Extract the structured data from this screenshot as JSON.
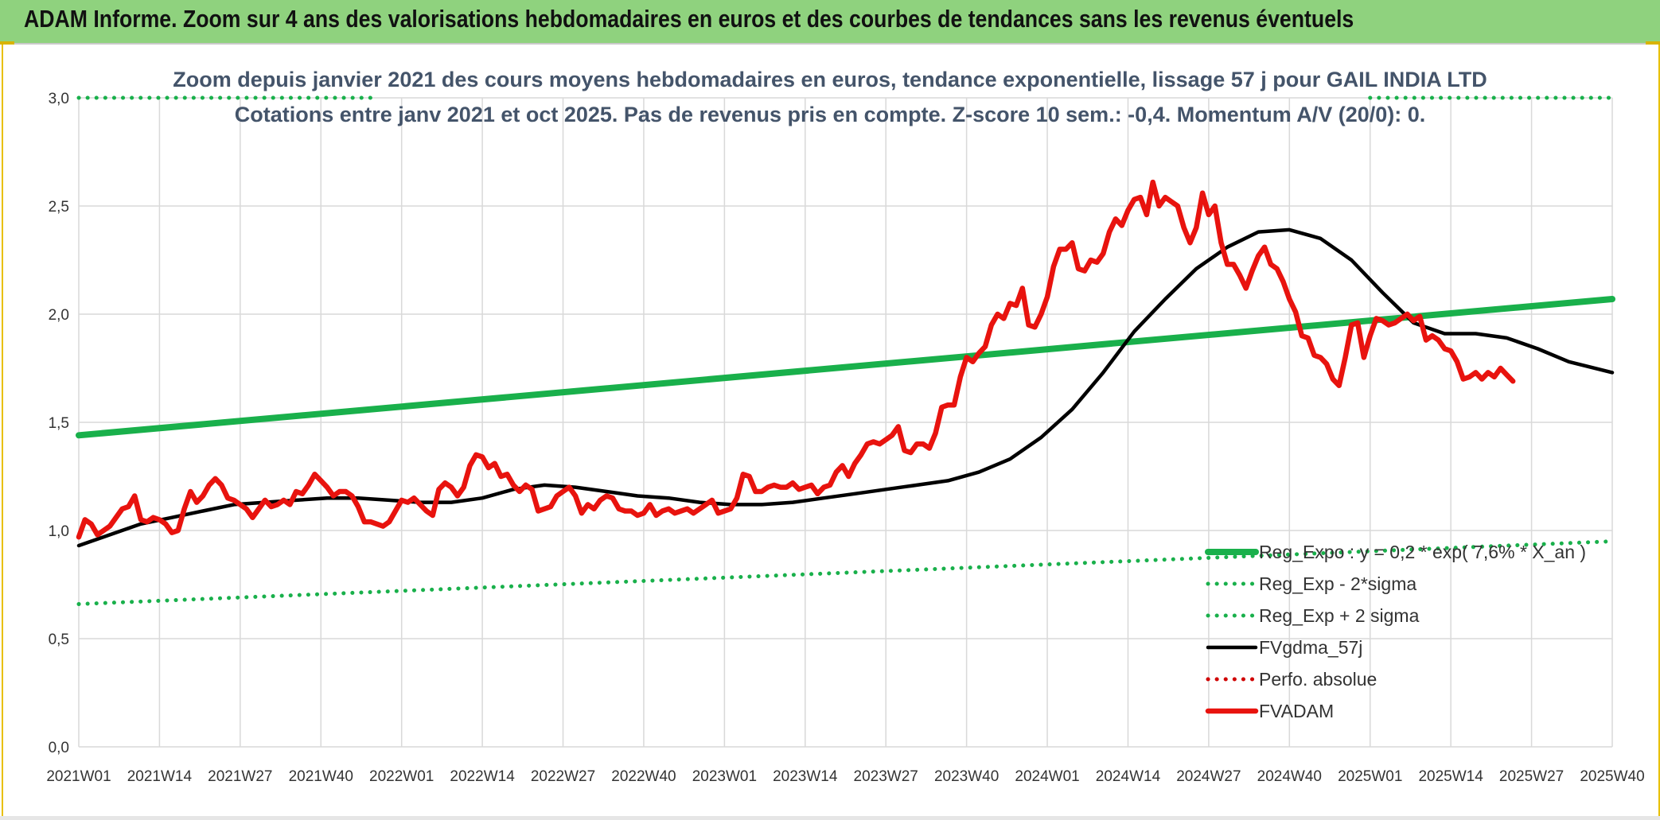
{
  "header": {
    "title": "ADAM Informe. Zoom sur 4 ans des valorisations hebdomadaires en euros et des courbes de tendances sans les revenus éventuels"
  },
  "colors": {
    "header_bg": "#8fd27e",
    "reg_expo": "#19b04b",
    "sigma": "#19b04b",
    "fvgdma": "#000000",
    "perfo": "#d00000",
    "fvadam": "#e8130e",
    "grid": "#d9d9d9"
  },
  "chart_data": {
    "type": "line",
    "title": "Zoom depuis janvier 2021 des cours moyens hebdomadaires en euros, tendance exponentielle, lissage 57 j pour GAIL INDIA LTD",
    "subtitle": "Cotations entre janv 2021 et oct 2025. Pas de revenus pris en compte. Z-score 10 sem.: -0,4. Momentum A/V (20/0): 0.",
    "xlabel": "",
    "ylabel": "",
    "ylim": [
      0,
      3
    ],
    "yticks": [
      "0,0",
      "0,5",
      "1,0",
      "1,5",
      "2,0",
      "2,5",
      "3,0"
    ],
    "grid": true,
    "legend_position": "bottom-right",
    "x_tick_labels": [
      "2021W01",
      "2021W14",
      "2021W27",
      "2021W40",
      "2022W01",
      "2022W14",
      "2022W27",
      "2022W40",
      "2023W01",
      "2023W14",
      "2023W27",
      "2023W40",
      "2024W01",
      "2024W14",
      "2024W27",
      "2024W40",
      "2025W01",
      "2025W14",
      "2025W27",
      "2025W40"
    ],
    "x_range_weeks": [
      0,
      247
    ],
    "series": [
      {
        "name": "Reg_Expo : y = 0,2 * exp( 7,6% * X_an )",
        "style": "solid-thick",
        "color": "#19b04b",
        "points": [
          [
            0,
            1.44
          ],
          [
            247,
            2.07
          ]
        ]
      },
      {
        "name": "Reg_Exp - 2*sigma",
        "style": "dotted",
        "color": "#19b04b",
        "points": [
          [
            0,
            0.66
          ],
          [
            247,
            0.95
          ]
        ]
      },
      {
        "name": "Reg_Exp + 2 sigma",
        "style": "dotted",
        "color": "#19b04b",
        "points": [
          [
            0,
            3.0
          ],
          [
            247,
            3.0
          ]
        ]
      },
      {
        "name": "FVgdma_57j",
        "style": "solid",
        "color": "#000000",
        "points": [
          [
            0,
            0.93
          ],
          [
            5,
            0.98
          ],
          [
            10,
            1.03
          ],
          [
            15,
            1.06
          ],
          [
            20,
            1.09
          ],
          [
            25,
            1.12
          ],
          [
            30,
            1.13
          ],
          [
            35,
            1.14
          ],
          [
            40,
            1.15
          ],
          [
            45,
            1.15
          ],
          [
            50,
            1.14
          ],
          [
            55,
            1.13
          ],
          [
            60,
            1.13
          ],
          [
            65,
            1.15
          ],
          [
            70,
            1.19
          ],
          [
            75,
            1.21
          ],
          [
            80,
            1.2
          ],
          [
            85,
            1.18
          ],
          [
            90,
            1.16
          ],
          [
            95,
            1.15
          ],
          [
            100,
            1.13
          ],
          [
            105,
            1.12
          ],
          [
            110,
            1.12
          ],
          [
            115,
            1.13
          ],
          [
            120,
            1.15
          ],
          [
            125,
            1.17
          ],
          [
            130,
            1.19
          ],
          [
            135,
            1.21
          ],
          [
            140,
            1.23
          ],
          [
            145,
            1.27
          ],
          [
            150,
            1.33
          ],
          [
            155,
            1.43
          ],
          [
            160,
            1.56
          ],
          [
            165,
            1.73
          ],
          [
            170,
            1.92
          ],
          [
            175,
            2.07
          ],
          [
            180,
            2.21
          ],
          [
            185,
            2.31
          ],
          [
            190,
            2.38
          ],
          [
            195,
            2.39
          ],
          [
            200,
            2.35
          ],
          [
            205,
            2.25
          ],
          [
            210,
            2.1
          ],
          [
            215,
            1.96
          ],
          [
            220,
            1.91
          ],
          [
            225,
            1.91
          ],
          [
            230,
            1.89
          ],
          [
            235,
            1.84
          ],
          [
            240,
            1.78
          ],
          [
            247,
            1.73
          ]
        ]
      },
      {
        "name": "Perfo. absolue",
        "style": "dotted",
        "color": "#d00000",
        "points": []
      },
      {
        "name": "FVADAM",
        "style": "solid-thick",
        "color": "#e8130e",
        "points": [
          [
            0,
            0.97
          ],
          [
            1,
            1.05
          ],
          [
            2,
            1.03
          ],
          [
            3,
            0.98
          ],
          [
            4,
            1.0
          ],
          [
            5,
            1.02
          ],
          [
            6,
            1.06
          ],
          [
            7,
            1.1
          ],
          [
            8,
            1.11
          ],
          [
            9,
            1.16
          ],
          [
            10,
            1.05
          ],
          [
            11,
            1.04
          ],
          [
            12,
            1.06
          ],
          [
            13,
            1.05
          ],
          [
            14,
            1.03
          ],
          [
            15,
            0.99
          ],
          [
            16,
            1.0
          ],
          [
            17,
            1.1
          ],
          [
            18,
            1.18
          ],
          [
            19,
            1.13
          ],
          [
            20,
            1.16
          ],
          [
            21,
            1.21
          ],
          [
            22,
            1.24
          ],
          [
            23,
            1.21
          ],
          [
            24,
            1.15
          ],
          [
            25,
            1.14
          ],
          [
            26,
            1.12
          ],
          [
            27,
            1.1
          ],
          [
            28,
            1.06
          ],
          [
            29,
            1.1
          ],
          [
            30,
            1.14
          ],
          [
            31,
            1.11
          ],
          [
            32,
            1.12
          ],
          [
            33,
            1.14
          ],
          [
            34,
            1.12
          ],
          [
            35,
            1.18
          ],
          [
            36,
            1.17
          ],
          [
            37,
            1.21
          ],
          [
            38,
            1.26
          ],
          [
            39,
            1.23
          ],
          [
            40,
            1.2
          ],
          [
            41,
            1.16
          ],
          [
            42,
            1.18
          ],
          [
            43,
            1.18
          ],
          [
            44,
            1.16
          ],
          [
            45,
            1.11
          ],
          [
            46,
            1.04
          ],
          [
            47,
            1.04
          ],
          [
            48,
            1.03
          ],
          [
            49,
            1.02
          ],
          [
            50,
            1.04
          ],
          [
            51,
            1.09
          ],
          [
            52,
            1.14
          ],
          [
            53,
            1.13
          ],
          [
            54,
            1.15
          ],
          [
            55,
            1.12
          ],
          [
            56,
            1.09
          ],
          [
            57,
            1.07
          ],
          [
            58,
            1.19
          ],
          [
            59,
            1.22
          ],
          [
            60,
            1.2
          ],
          [
            61,
            1.16
          ],
          [
            62,
            1.2
          ],
          [
            63,
            1.3
          ],
          [
            64,
            1.35
          ],
          [
            65,
            1.34
          ],
          [
            66,
            1.29
          ],
          [
            67,
            1.31
          ],
          [
            68,
            1.25
          ],
          [
            69,
            1.26
          ],
          [
            70,
            1.21
          ],
          [
            71,
            1.18
          ],
          [
            72,
            1.21
          ],
          [
            73,
            1.19
          ],
          [
            74,
            1.09
          ],
          [
            75,
            1.1
          ],
          [
            76,
            1.11
          ],
          [
            77,
            1.16
          ],
          [
            78,
            1.18
          ],
          [
            79,
            1.2
          ],
          [
            80,
            1.16
          ],
          [
            81,
            1.08
          ],
          [
            82,
            1.12
          ],
          [
            83,
            1.1
          ],
          [
            84,
            1.14
          ],
          [
            85,
            1.16
          ],
          [
            86,
            1.15
          ],
          [
            87,
            1.1
          ],
          [
            88,
            1.09
          ],
          [
            89,
            1.09
          ],
          [
            90,
            1.07
          ],
          [
            91,
            1.08
          ],
          [
            92,
            1.12
          ],
          [
            93,
            1.07
          ],
          [
            94,
            1.09
          ],
          [
            95,
            1.1
          ],
          [
            96,
            1.08
          ],
          [
            97,
            1.09
          ],
          [
            98,
            1.1
          ],
          [
            99,
            1.08
          ],
          [
            100,
            1.1
          ],
          [
            101,
            1.12
          ],
          [
            102,
            1.14
          ],
          [
            103,
            1.08
          ],
          [
            104,
            1.09
          ],
          [
            105,
            1.1
          ],
          [
            106,
            1.15
          ],
          [
            107,
            1.26
          ],
          [
            108,
            1.25
          ],
          [
            109,
            1.18
          ],
          [
            110,
            1.18
          ],
          [
            111,
            1.2
          ],
          [
            112,
            1.21
          ],
          [
            113,
            1.2
          ],
          [
            114,
            1.2
          ],
          [
            115,
            1.22
          ],
          [
            116,
            1.19
          ],
          [
            117,
            1.2
          ],
          [
            118,
            1.21
          ],
          [
            119,
            1.17
          ],
          [
            120,
            1.2
          ],
          [
            121,
            1.21
          ],
          [
            122,
            1.27
          ],
          [
            123,
            1.3
          ],
          [
            124,
            1.25
          ],
          [
            125,
            1.31
          ],
          [
            126,
            1.35
          ],
          [
            127,
            1.4
          ],
          [
            128,
            1.41
          ],
          [
            129,
            1.4
          ],
          [
            130,
            1.42
          ],
          [
            131,
            1.44
          ],
          [
            132,
            1.48
          ],
          [
            133,
            1.37
          ],
          [
            134,
            1.36
          ],
          [
            135,
            1.4
          ],
          [
            136,
            1.4
          ],
          [
            137,
            1.38
          ],
          [
            138,
            1.45
          ],
          [
            139,
            1.57
          ],
          [
            140,
            1.58
          ],
          [
            141,
            1.58
          ],
          [
            142,
            1.71
          ],
          [
            143,
            1.8
          ],
          [
            144,
            1.78
          ],
          [
            145,
            1.82
          ],
          [
            146,
            1.85
          ],
          [
            147,
            1.95
          ],
          [
            148,
            2.0
          ],
          [
            149,
            1.98
          ],
          [
            150,
            2.05
          ],
          [
            151,
            2.04
          ],
          [
            152,
            2.12
          ],
          [
            153,
            1.95
          ],
          [
            154,
            1.94
          ],
          [
            155,
            2.0
          ],
          [
            156,
            2.08
          ],
          [
            157,
            2.22
          ],
          [
            158,
            2.3
          ],
          [
            159,
            2.3
          ],
          [
            160,
            2.33
          ],
          [
            161,
            2.21
          ],
          [
            162,
            2.2
          ],
          [
            163,
            2.25
          ],
          [
            164,
            2.24
          ],
          [
            165,
            2.28
          ],
          [
            166,
            2.38
          ],
          [
            167,
            2.44
          ],
          [
            168,
            2.41
          ],
          [
            169,
            2.48
          ],
          [
            170,
            2.53
          ],
          [
            171,
            2.54
          ],
          [
            172,
            2.46
          ],
          [
            173,
            2.61
          ],
          [
            174,
            2.5
          ],
          [
            175,
            2.54
          ],
          [
            176,
            2.52
          ],
          [
            177,
            2.5
          ],
          [
            178,
            2.4
          ],
          [
            179,
            2.33
          ],
          [
            180,
            2.4
          ],
          [
            181,
            2.56
          ],
          [
            182,
            2.46
          ],
          [
            183,
            2.5
          ],
          [
            184,
            2.33
          ],
          [
            185,
            2.23
          ],
          [
            186,
            2.23
          ],
          [
            187,
            2.18
          ],
          [
            188,
            2.12
          ],
          [
            189,
            2.2
          ],
          [
            190,
            2.27
          ],
          [
            191,
            2.31
          ],
          [
            192,
            2.23
          ],
          [
            193,
            2.21
          ],
          [
            194,
            2.15
          ],
          [
            195,
            2.07
          ],
          [
            196,
            2.01
          ],
          [
            197,
            1.9
          ],
          [
            198,
            1.89
          ],
          [
            199,
            1.81
          ],
          [
            200,
            1.8
          ],
          [
            201,
            1.77
          ],
          [
            202,
            1.7
          ],
          [
            203,
            1.67
          ],
          [
            204,
            1.8
          ],
          [
            205,
            1.95
          ],
          [
            206,
            1.96
          ],
          [
            207,
            1.8
          ],
          [
            208,
            1.9
          ],
          [
            209,
            1.98
          ],
          [
            210,
            1.97
          ],
          [
            211,
            1.95
          ],
          [
            212,
            1.96
          ],
          [
            213,
            1.98
          ],
          [
            214,
            2.0
          ],
          [
            215,
            1.97
          ],
          [
            216,
            1.99
          ],
          [
            217,
            1.88
          ],
          [
            218,
            1.9
          ],
          [
            219,
            1.88
          ],
          [
            220,
            1.84
          ],
          [
            221,
            1.83
          ],
          [
            222,
            1.78
          ],
          [
            223,
            1.7
          ],
          [
            224,
            1.71
          ],
          [
            225,
            1.73
          ],
          [
            226,
            1.7
          ],
          [
            227,
            1.73
          ],
          [
            228,
            1.71
          ],
          [
            229,
            1.75
          ],
          [
            230,
            1.72
          ],
          [
            231,
            1.69
          ]
        ]
      }
    ]
  }
}
